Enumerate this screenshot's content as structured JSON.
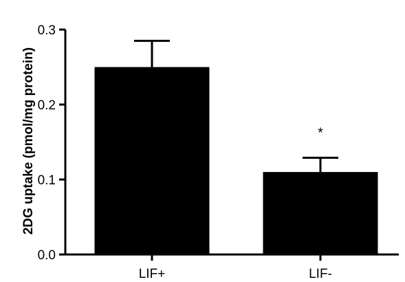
{
  "chart_data": {
    "type": "bar",
    "categories": [
      "LIF+",
      "LIF-"
    ],
    "values": [
      0.25,
      0.11
    ],
    "errors": [
      0.035,
      0.019
    ],
    "ylabel": "2DG uptake (pmol/mg protein)",
    "xlabel": "",
    "ylim": [
      0.0,
      0.3
    ],
    "yticks": [
      "0.0",
      "0.1",
      "0.2",
      "0.3"
    ],
    "annotations": [
      {
        "category": "LIF-",
        "text": "*"
      }
    ],
    "bar_color": "#000000",
    "grid": false
  }
}
